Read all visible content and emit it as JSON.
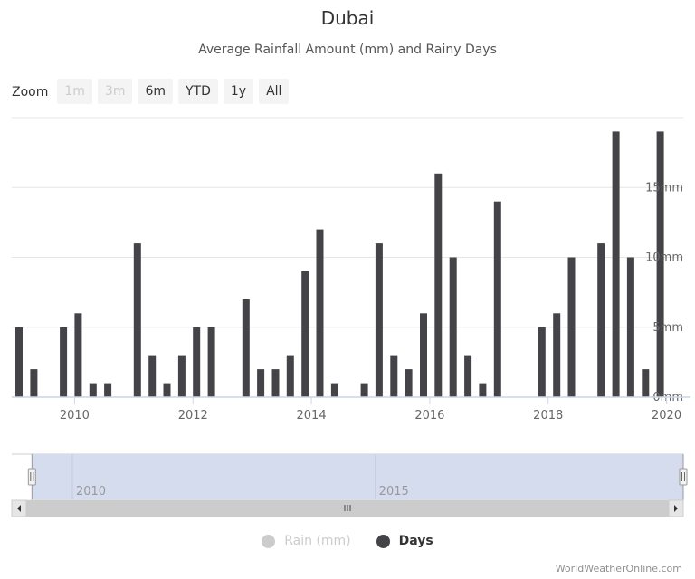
{
  "chart_data": {
    "type": "bar",
    "title": "Dubai",
    "subtitle": "Average Rainfall Amount (mm) and Rainy Days",
    "xlabel": "",
    "ylabel": "",
    "y_ticks": [
      0,
      5,
      10,
      15
    ],
    "y_tick_labels": [
      "0mm",
      "5mm",
      "10mm",
      "15mm"
    ],
    "ylim": [
      0,
      20
    ],
    "xlim": [
      "2009-01",
      "2020-02"
    ],
    "x_tick_labels": [
      "2010",
      "2012",
      "2014",
      "2016",
      "2018",
      "2020"
    ],
    "grid": true,
    "series": [
      {
        "name": "Days",
        "color": "#434348",
        "points": [
          {
            "x": "2009-01",
            "y": 5
          },
          {
            "x": "2009-04",
            "y": 2
          },
          {
            "x": "2009-10",
            "y": 5
          },
          {
            "x": "2010-01",
            "y": 6
          },
          {
            "x": "2010-04",
            "y": 1
          },
          {
            "x": "2010-07",
            "y": 1
          },
          {
            "x": "2011-01",
            "y": 11
          },
          {
            "x": "2011-04",
            "y": 3
          },
          {
            "x": "2011-07",
            "y": 1
          },
          {
            "x": "2011-10",
            "y": 3
          },
          {
            "x": "2012-01",
            "y": 5
          },
          {
            "x": "2012-04",
            "y": 5
          },
          {
            "x": "2012-11",
            "y": 7
          },
          {
            "x": "2013-02",
            "y": 2
          },
          {
            "x": "2013-05",
            "y": 2
          },
          {
            "x": "2013-08",
            "y": 3
          },
          {
            "x": "2013-11",
            "y": 9
          },
          {
            "x": "2014-02",
            "y": 12
          },
          {
            "x": "2014-05",
            "y": 1
          },
          {
            "x": "2014-11",
            "y": 1
          },
          {
            "x": "2015-02",
            "y": 11
          },
          {
            "x": "2015-05",
            "y": 3
          },
          {
            "x": "2015-08",
            "y": 2
          },
          {
            "x": "2015-11",
            "y": 6
          },
          {
            "x": "2016-02",
            "y": 16
          },
          {
            "x": "2016-05",
            "y": 10
          },
          {
            "x": "2016-08",
            "y": 3
          },
          {
            "x": "2016-11",
            "y": 1
          },
          {
            "x": "2017-02",
            "y": 14
          },
          {
            "x": "2017-11",
            "y": 5
          },
          {
            "x": "2018-02",
            "y": 6
          },
          {
            "x": "2018-05",
            "y": 10
          },
          {
            "x": "2018-11",
            "y": 11
          },
          {
            "x": "2019-02",
            "y": 19
          },
          {
            "x": "2019-05",
            "y": 10
          },
          {
            "x": "2019-08",
            "y": 2
          },
          {
            "x": "2019-11",
            "y": 19
          }
        ]
      }
    ],
    "legend": [
      {
        "label": "Rain (mm)",
        "color": "#cccccc",
        "visible": false
      },
      {
        "label": "Days",
        "color": "#434348",
        "visible": true
      }
    ],
    "legend_position": "bottom-center"
  },
  "zoom": {
    "label": "Zoom",
    "buttons": [
      {
        "label": "1m",
        "state": "disabled"
      },
      {
        "label": "3m",
        "state": "disabled"
      },
      {
        "label": "6m",
        "state": "enabled"
      },
      {
        "label": "YTD",
        "state": "enabled"
      },
      {
        "label": "1y",
        "state": "enabled"
      },
      {
        "label": "All",
        "state": "enabled"
      }
    ]
  },
  "navigator": {
    "tick_labels": [
      "2010",
      "2015"
    ],
    "range_start": "2009-05",
    "range_end": "2020-02",
    "domain": [
      "2009-01",
      "2020-02"
    ],
    "colors": {
      "mask": "#d5dcee",
      "scrollbar": "#cccccc"
    }
  },
  "credits": "WorldWeatherOnline.com"
}
